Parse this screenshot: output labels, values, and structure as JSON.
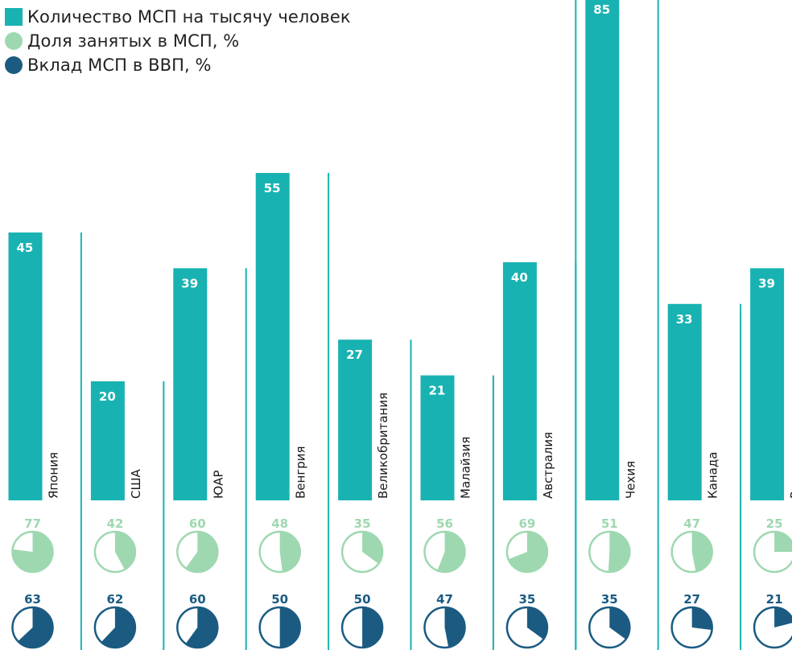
{
  "legend": {
    "bars_label": "Количество МСП на тысячу человек",
    "employment_label": "Доля занятых в МСП, %",
    "gdp_label": "Вклад МСП в ВВП, %"
  },
  "colors": {
    "bar": "#19b2b2",
    "employment": "#9ed8b0",
    "gdp": "#1b5b82",
    "separator": "#19b2b2",
    "bar_value_text": "#ffffff"
  },
  "chart_data": {
    "type": "bar",
    "categories": [
      "Япония",
      "США",
      "ЮАР",
      "Венгрия",
      "Великобритания",
      "Малайзия",
      "Австралия",
      "Чехия",
      "Канада",
      "Россия"
    ],
    "series": [
      {
        "name": "Количество МСП на тысячу человек",
        "values": [
          45,
          20,
          39,
          55,
          27,
          21,
          40,
          85,
          33,
          39
        ]
      },
      {
        "name": "Доля занятых в МСП, %",
        "values": [
          77,
          42,
          60,
          48,
          35,
          56,
          69,
          51,
          47,
          25
        ]
      },
      {
        "name": "Вклад МСП в ВВП, %",
        "values": [
          63,
          62,
          60,
          50,
          50,
          47,
          35,
          35,
          27,
          21
        ]
      }
    ]
  }
}
